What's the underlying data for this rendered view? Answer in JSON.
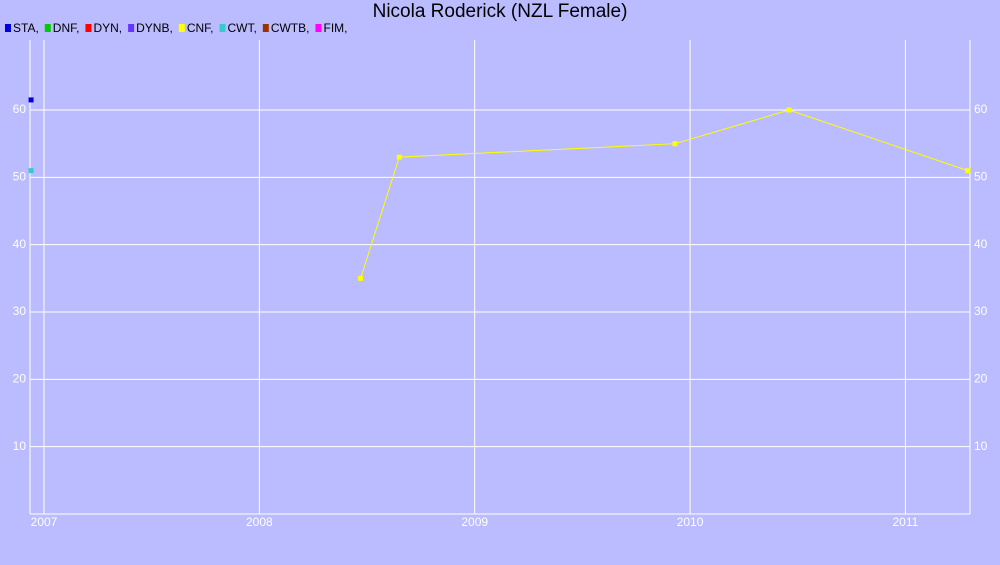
{
  "chart_data": {
    "type": "line",
    "title": "Nicola Roderick (NZL Female)",
    "xlim": [
      2006.935,
      2011.3
    ],
    "xticks": [
      2007,
      2008,
      2009,
      2010,
      2011
    ],
    "ylim": [
      0,
      70.4
    ],
    "yticks": [
      10,
      20,
      30,
      40,
      50,
      60
    ],
    "grid": true,
    "series": [
      {
        "name": "STA,",
        "color": "#0000dd",
        "x": [
          2006.94
        ],
        "values": [
          61.5
        ]
      },
      {
        "name": "DNF,",
        "color": "#00cc00",
        "x": [],
        "values": []
      },
      {
        "name": "DYN,",
        "color": "#ff0000",
        "x": [],
        "values": []
      },
      {
        "name": "DYNB,",
        "color": "#6633ff",
        "x": [],
        "values": []
      },
      {
        "name": "CNF,",
        "color": "#ffff00",
        "x": [
          2008.47,
          2008.65,
          2009.93,
          2010.46,
          2011.29
        ],
        "values": [
          35,
          53,
          55,
          60,
          51
        ]
      },
      {
        "name": "CWT,",
        "color": "#33cccc",
        "x": [
          2006.94
        ],
        "values": [
          51
        ]
      },
      {
        "name": "CWTB,",
        "color": "#993300",
        "x": [],
        "values": []
      },
      {
        "name": "FIM,",
        "color": "#ff00ff",
        "x": [],
        "values": []
      }
    ]
  }
}
